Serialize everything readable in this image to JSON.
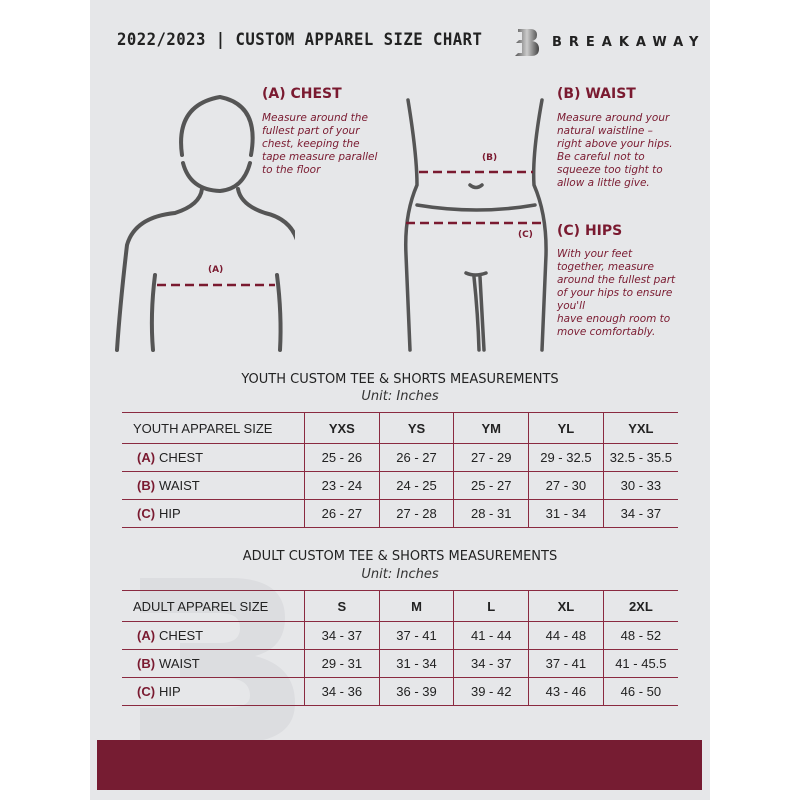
{
  "header": {
    "title": "2022/2023  |  CUSTOM APPAREL SIZE CHART",
    "brand": "BREAKAWAY",
    "brand_logo_letter": "B"
  },
  "chest": {
    "heading": "(A) CHEST",
    "description": "Measure around the\nfullest part of your\nchest, keeping the\ntape measure parallel\nto the floor",
    "marker": "(A)"
  },
  "waist": {
    "heading": "(B) WAIST",
    "description": "Measure around your\nnatural waistline –\nright above your hips.\nBe careful not to\nsqueeze too tight to\nallow a little give.",
    "marker": "(B)"
  },
  "hips": {
    "heading": "(C) HIPS",
    "description": "With your feet\ntogether, measure\naround the fullest part\nof your hips to ensure\nyou'll\nhave enough room to\nmove comfortably.",
    "marker": "(C)"
  },
  "youth": {
    "title": "YOUTH CUSTOM TEE & SHORTS MEASUREMENTS",
    "unit": "Unit: Inches",
    "size_label": "YOUTH APPAREL SIZE",
    "sizes": [
      "YXS",
      "YS",
      "YM",
      "YL",
      "YXL"
    ],
    "rows": [
      {
        "letter": "(A)",
        "label": "CHEST",
        "values": [
          "25 - 26",
          "26 - 27",
          "27 - 29",
          "29 - 32.5",
          "32.5 - 35.5"
        ]
      },
      {
        "letter": "(B)",
        "label": "WAIST",
        "values": [
          "23 - 24",
          "24 - 25",
          "25 - 27",
          "27 - 30",
          "30 - 33"
        ]
      },
      {
        "letter": "(C)",
        "label": "HIP",
        "values": [
          "26 - 27",
          "27 - 28",
          "28 - 31",
          "31 - 34",
          "34 - 37"
        ]
      }
    ]
  },
  "adult": {
    "title": "ADULT CUSTOM TEE & SHORTS MEASUREMENTS",
    "unit": "Unit: Inches",
    "size_label": "ADULT APPAREL SIZE",
    "sizes": [
      "S",
      "M",
      "L",
      "XL",
      "2XL"
    ],
    "rows": [
      {
        "letter": "(A)",
        "label": "CHEST",
        "values": [
          "34 - 37",
          "37 - 41",
          "41 - 44",
          "44 - 48",
          "48 - 52"
        ]
      },
      {
        "letter": "(B)",
        "label": "WAIST",
        "values": [
          "29 - 31",
          "31 - 34",
          "34 - 37",
          "37 - 41",
          "41 - 45.5"
        ]
      },
      {
        "letter": "(C)",
        "label": "HIP",
        "values": [
          "34 - 36",
          "36 - 39",
          "39 - 42",
          "43 - 46",
          "46 - 50"
        ]
      }
    ]
  },
  "colors": {
    "accent": "#7a1a30",
    "panel": "#e6e7e9",
    "band": "#761c32"
  }
}
